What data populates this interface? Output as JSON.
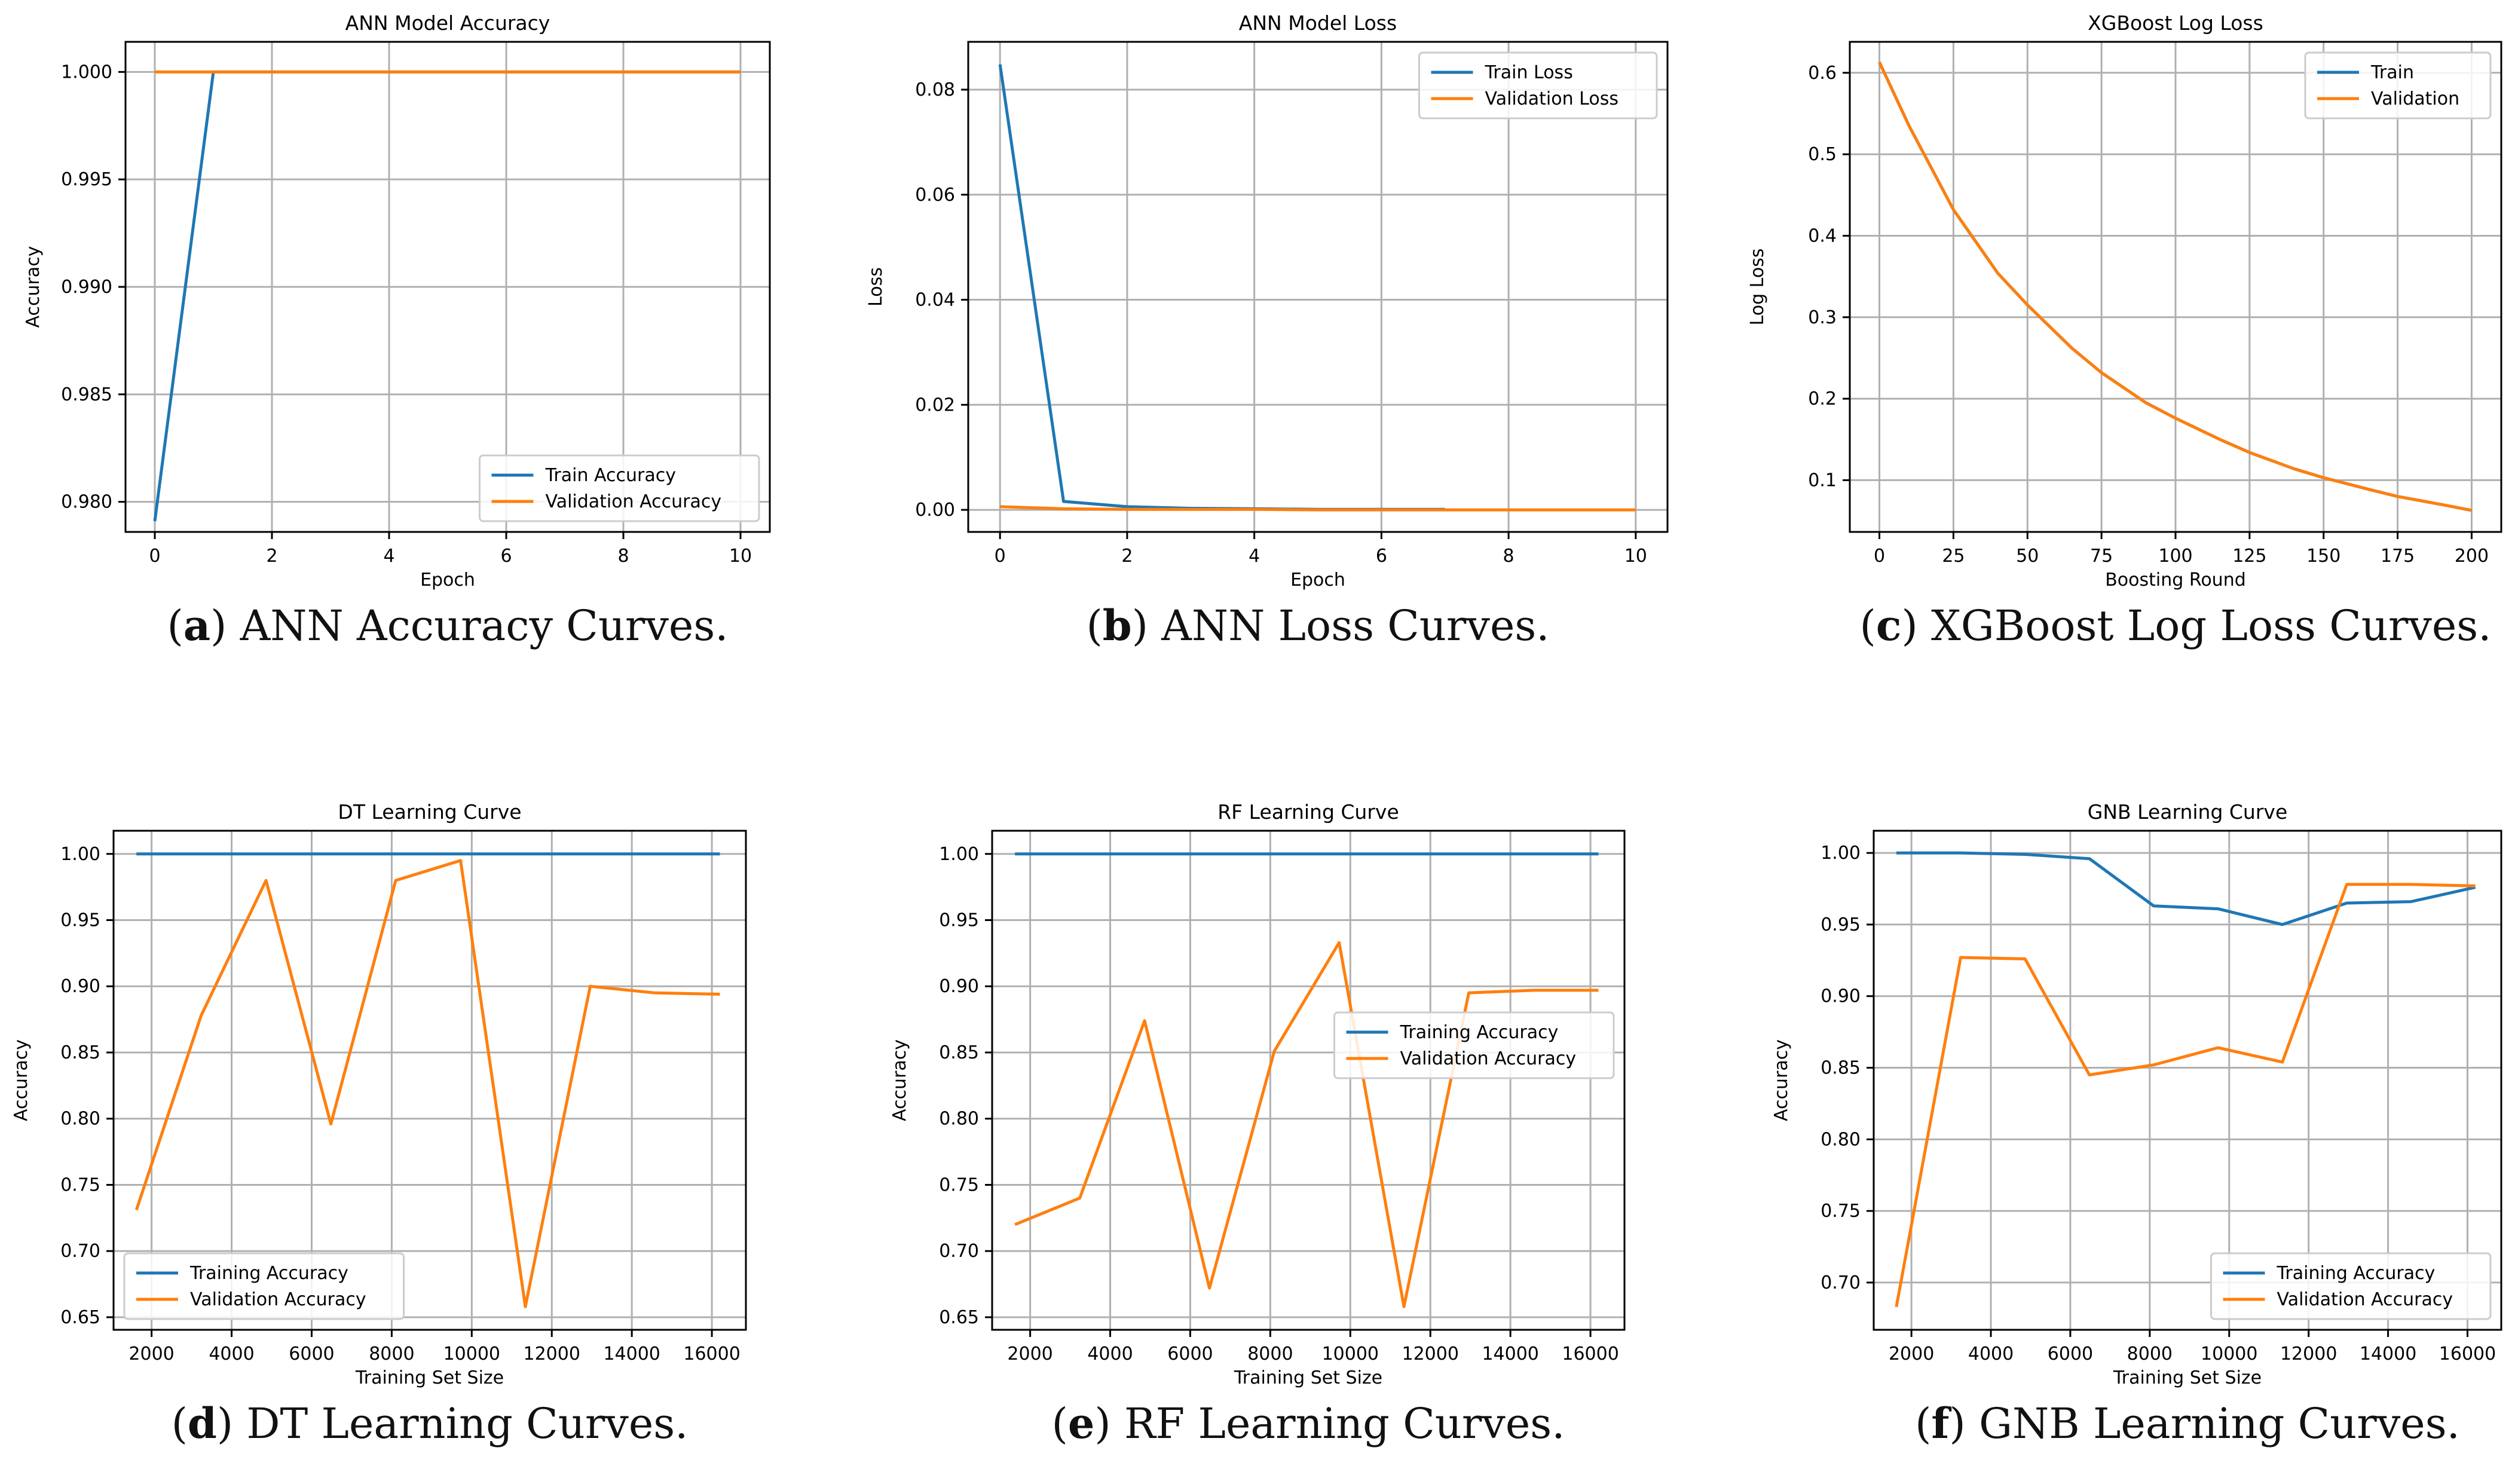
{
  "colors": {
    "blue": "#1f77b4",
    "orange": "#ff7f0e",
    "grid": "#b0b0b0"
  },
  "chart_data": [
    {
      "id": "ann-acc",
      "type": "line",
      "title": "ANN Model Accuracy",
      "xlabel": "Epoch",
      "ylabel": "Accuracy",
      "xlim": [
        -0.5,
        10.5
      ],
      "ylim": [
        0.9786,
        1.0014
      ],
      "xticks": [
        0,
        2,
        4,
        6,
        8,
        10
      ],
      "yticks": [
        0.98,
        0.985,
        0.99,
        0.995,
        1.0
      ],
      "xtick_labels": [
        "0",
        "2",
        "4",
        "6",
        "8",
        "10"
      ],
      "ytick_labels": [
        "0.980",
        "0.985",
        "0.990",
        "0.995",
        "1.000"
      ],
      "legend_loc": "lower-right",
      "series": [
        {
          "name": "Train Accuracy",
          "color": "blue",
          "x": [
            0,
            1,
            2,
            3,
            4,
            5,
            6,
            7,
            8,
            9,
            10
          ],
          "y": [
            0.9791,
            1.0,
            1.0,
            1.0,
            1.0,
            1.0,
            1.0,
            1.0,
            1.0,
            1.0,
            1.0
          ]
        },
        {
          "name": "Validation Accuracy",
          "color": "orange",
          "x": [
            0,
            1,
            2,
            3,
            4,
            5,
            6,
            7,
            8,
            9,
            10
          ],
          "y": [
            1.0,
            1.0,
            1.0,
            1.0,
            1.0,
            1.0,
            1.0,
            1.0,
            1.0,
            1.0,
            1.0
          ]
        }
      ],
      "caption_label": "(a)",
      "caption_text": " ANN Accuracy Curves."
    },
    {
      "id": "ann-loss",
      "type": "line",
      "title": "ANN Model Loss",
      "xlabel": "Epoch",
      "ylabel": "Loss",
      "xlim": [
        -0.5,
        10.5
      ],
      "ylim": [
        -0.0042,
        0.0891
      ],
      "xticks": [
        0,
        2,
        4,
        6,
        8,
        10
      ],
      "yticks": [
        0.0,
        0.02,
        0.04,
        0.06,
        0.08
      ],
      "xtick_labels": [
        "0",
        "2",
        "4",
        "6",
        "8",
        "10"
      ],
      "ytick_labels": [
        "0.00",
        "0.02",
        "0.04",
        "0.06",
        "0.08"
      ],
      "legend_loc": "upper-right",
      "series": [
        {
          "name": "Train Loss",
          "color": "blue",
          "x": [
            0,
            1,
            2,
            3,
            4,
            5,
            6,
            7
          ],
          "y": [
            0.0848,
            0.0016,
            0.0006,
            0.0003,
            0.0002,
            0.0001,
            0.0001,
            0.0001
          ]
        },
        {
          "name": "Validation Loss",
          "color": "orange",
          "x": [
            0,
            1,
            2,
            3,
            4,
            5,
            6,
            7,
            8,
            9,
            10
          ],
          "y": [
            0.0006,
            0.0002,
            0.0001,
            0.0001,
            0.0001,
            0.0,
            0.0,
            0.0,
            0.0,
            0.0,
            0.0
          ]
        }
      ],
      "caption_label": "(b)",
      "caption_text": " ANN Loss Curves."
    },
    {
      "id": "xgb-logloss",
      "type": "line",
      "title": "XGBoost Log Loss",
      "xlabel": "Boosting Round",
      "ylabel": "Log Loss",
      "xlim": [
        -10,
        210
      ],
      "ylim": [
        0.0365,
        0.638
      ],
      "xticks": [
        0,
        25,
        50,
        75,
        100,
        125,
        150,
        175,
        200
      ],
      "yticks": [
        0.1,
        0.2,
        0.3,
        0.4,
        0.5,
        0.6
      ],
      "xtick_labels": [
        "0",
        "25",
        "50",
        "75",
        "100",
        "125",
        "150",
        "175",
        "200"
      ],
      "ytick_labels": [
        "0.1",
        "0.2",
        "0.3",
        "0.4",
        "0.5",
        "0.6"
      ],
      "legend_loc": "upper-right",
      "series": [
        {
          "name": "Train",
          "color": "blue",
          "x": [
            0,
            10,
            25,
            40,
            50,
            65,
            75,
            90,
            100,
            115,
            125,
            140,
            150,
            165,
            175,
            190,
            200
          ],
          "y": [
            0.613,
            0.535,
            0.432,
            0.354,
            0.315,
            0.262,
            0.232,
            0.195,
            0.176,
            0.15,
            0.134,
            0.114,
            0.103,
            0.089,
            0.08,
            0.07,
            0.063
          ]
        },
        {
          "name": "Validation",
          "color": "orange",
          "x": [
            0,
            10,
            25,
            40,
            50,
            65,
            75,
            90,
            100,
            115,
            125,
            140,
            150,
            165,
            175,
            190,
            200
          ],
          "y": [
            0.613,
            0.535,
            0.432,
            0.354,
            0.315,
            0.262,
            0.232,
            0.195,
            0.176,
            0.15,
            0.134,
            0.114,
            0.103,
            0.089,
            0.08,
            0.07,
            0.063
          ]
        }
      ],
      "caption_label": "(c)",
      "caption_text": " XGBoost Log Loss Curves."
    },
    {
      "id": "dt-curve",
      "type": "line",
      "title": "DT Learning Curve",
      "xlabel": "Training Set Size",
      "ylabel": "Accuracy",
      "xlim": [
        1050,
        16850
      ],
      "ylim": [
        0.6405,
        1.0175
      ],
      "xticks": [
        2000,
        4000,
        6000,
        8000,
        10000,
        12000,
        14000,
        16000
      ],
      "yticks": [
        0.65,
        0.7,
        0.75,
        0.8,
        0.85,
        0.9,
        0.95,
        1.0
      ],
      "xtick_labels": [
        "2000",
        "4000",
        "6000",
        "8000",
        "10000",
        "12000",
        "14000",
        "16000"
      ],
      "ytick_labels": [
        "0.65",
        "0.70",
        "0.75",
        "0.80",
        "0.85",
        "0.90",
        "0.95",
        "1.00"
      ],
      "legend_loc": "lower-left",
      "series": [
        {
          "name": "Training Accuracy",
          "color": "blue",
          "x": [
            1620,
            3240,
            4860,
            6480,
            8100,
            9720,
            11340,
            12960,
            14580,
            16200
          ],
          "y": [
            1.0,
            1.0,
            1.0,
            1.0,
            1.0,
            1.0,
            1.0,
            1.0,
            1.0,
            1.0
          ]
        },
        {
          "name": "Validation Accuracy",
          "color": "orange",
          "x": [
            1620,
            3240,
            4860,
            6480,
            8100,
            9720,
            11340,
            12960,
            14580,
            16200
          ],
          "y": [
            0.731,
            0.878,
            0.98,
            0.796,
            0.98,
            0.995,
            0.658,
            0.9,
            0.895,
            0.894
          ]
        }
      ],
      "caption_label": "(d)",
      "caption_text": " DT Learning Curves."
    },
    {
      "id": "rf-curve",
      "type": "line",
      "title": "RF Learning Curve",
      "xlabel": "Training Set Size",
      "ylabel": "Accuracy",
      "xlim": [
        1050,
        16850
      ],
      "ylim": [
        0.6405,
        1.0175
      ],
      "xticks": [
        2000,
        4000,
        6000,
        8000,
        10000,
        12000,
        14000,
        16000
      ],
      "yticks": [
        0.65,
        0.7,
        0.75,
        0.8,
        0.85,
        0.9,
        0.95,
        1.0
      ],
      "xtick_labels": [
        "2000",
        "4000",
        "6000",
        "8000",
        "10000",
        "12000",
        "14000",
        "16000"
      ],
      "ytick_labels": [
        "0.65",
        "0.70",
        "0.75",
        "0.80",
        "0.85",
        "0.90",
        "0.95",
        "1.00"
      ],
      "legend_loc": "center-right",
      "series": [
        {
          "name": "Training Accuracy",
          "color": "blue",
          "x": [
            1620,
            3240,
            4860,
            6480,
            8100,
            9720,
            11340,
            12960,
            14580,
            16200
          ],
          "y": [
            1.0,
            1.0,
            1.0,
            1.0,
            1.0,
            1.0,
            1.0,
            1.0,
            1.0,
            1.0
          ]
        },
        {
          "name": "Validation Accuracy",
          "color": "orange",
          "x": [
            1620,
            3240,
            4860,
            6480,
            8100,
            9720,
            11340,
            12960,
            14580,
            16200
          ],
          "y": [
            0.72,
            0.74,
            0.874,
            0.672,
            0.851,
            0.933,
            0.658,
            0.895,
            0.897,
            0.897
          ]
        }
      ],
      "caption_label": "(e)",
      "caption_text": " RF Learning Curves."
    },
    {
      "id": "gnb-curve",
      "type": "line",
      "title": "GNB Learning Curve",
      "xlabel": "Training Set Size",
      "ylabel": "Accuracy",
      "xlim": [
        1050,
        16850
      ],
      "ylim": [
        0.667,
        1.0155
      ],
      "xticks": [
        2000,
        4000,
        6000,
        8000,
        10000,
        12000,
        14000,
        16000
      ],
      "yticks": [
        0.7,
        0.75,
        0.8,
        0.85,
        0.9,
        0.95,
        1.0
      ],
      "xtick_labels": [
        "2000",
        "4000",
        "6000",
        "8000",
        "10000",
        "12000",
        "14000",
        "16000"
      ],
      "ytick_labels": [
        "0.70",
        "0.75",
        "0.80",
        "0.85",
        "0.90",
        "0.95",
        "1.00"
      ],
      "legend_loc": "lower-right",
      "series": [
        {
          "name": "Training Accuracy",
          "color": "blue",
          "x": [
            1620,
            3240,
            4860,
            6480,
            8100,
            9720,
            11340,
            12960,
            14580,
            16200
          ],
          "y": [
            1.0,
            1.0,
            0.999,
            0.996,
            0.963,
            0.961,
            0.95,
            0.965,
            0.966,
            0.976
          ]
        },
        {
          "name": "Validation Accuracy",
          "color": "orange",
          "x": [
            1620,
            3240,
            4860,
            6480,
            8100,
            9720,
            11340,
            12960,
            14580,
            16200
          ],
          "y": [
            0.683,
            0.927,
            0.926,
            0.845,
            0.852,
            0.864,
            0.854,
            0.978,
            0.978,
            0.977
          ]
        }
      ],
      "caption_label": "(f)",
      "caption_text": " GNB Learning Curves."
    }
  ]
}
